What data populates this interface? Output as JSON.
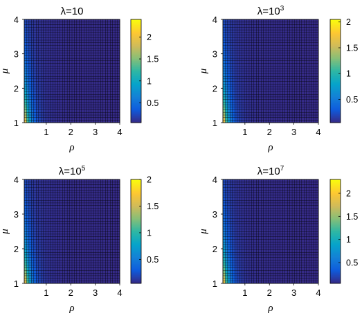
{
  "colormap": {
    "name": "parula",
    "stops": [
      "#352a87",
      "#0f5cdd",
      "#1481d6",
      "#06a4ca",
      "#2eb7a4",
      "#87bf77",
      "#d1bb59",
      "#fec832",
      "#f9fb0e"
    ]
  },
  "chart_data": [
    {
      "type": "heatmap",
      "title_prefix": "λ=10",
      "title_exp": "",
      "xlabel": "ρ",
      "ylabel": "μ",
      "xlim": [
        0.1,
        4
      ],
      "ylim": [
        1,
        4
      ],
      "xticks": [
        "1",
        "2",
        "3",
        "4"
      ],
      "yticks": [
        "1",
        "2",
        "3",
        "4"
      ],
      "grid": true,
      "cells_x": 40,
      "cells_y": 40,
      "clim": [
        0.05,
        2.4
      ],
      "cmax_at_origin": 2.4,
      "colorbar_ticks": [
        {
          "value": 0.5,
          "label": "0.5"
        },
        {
          "value": 1,
          "label": "1"
        },
        {
          "value": 1.5,
          "label": "1.5"
        },
        {
          "value": 2,
          "label": "2"
        }
      ]
    },
    {
      "type": "heatmap",
      "title_prefix": "λ=10",
      "title_exp": "3",
      "xlabel": "ρ",
      "ylabel": "μ",
      "xlim": [
        0.1,
        4
      ],
      "ylim": [
        1,
        4
      ],
      "xticks": [
        "1",
        "2",
        "3",
        "4"
      ],
      "yticks": [
        "1",
        "2",
        "3",
        "4"
      ],
      "grid": true,
      "cells_x": 40,
      "cells_y": 40,
      "clim": [
        0.05,
        2.05
      ],
      "cmax_at_origin": 2.05,
      "colorbar_ticks": [
        {
          "value": 0.5,
          "label": "0.5"
        },
        {
          "value": 1,
          "label": "1"
        },
        {
          "value": 1.5,
          "label": "1.5"
        },
        {
          "value": 2,
          "label": "2"
        }
      ]
    },
    {
      "type": "heatmap",
      "title_prefix": "λ=10",
      "title_exp": "5",
      "xlabel": "ρ",
      "ylabel": "μ",
      "xlim": [
        0.1,
        4
      ],
      "ylim": [
        1,
        4
      ],
      "xticks": [
        "1",
        "2",
        "3",
        "4"
      ],
      "yticks": [
        "1",
        "2",
        "3",
        "4"
      ],
      "grid": true,
      "cells_x": 40,
      "cells_y": 40,
      "clim": [
        0.05,
        2.0
      ],
      "cmax_at_origin": 2.0,
      "colorbar_ticks": [
        {
          "value": 0.5,
          "label": "0.5"
        },
        {
          "value": 1,
          "label": "1"
        },
        {
          "value": 1.5,
          "label": "1.5"
        },
        {
          "value": 2,
          "label": "2"
        }
      ]
    },
    {
      "type": "heatmap",
      "title_prefix": "λ=10",
      "title_exp": "7",
      "xlabel": "ρ",
      "ylabel": "μ",
      "xlim": [
        0.1,
        4
      ],
      "ylim": [
        1,
        4
      ],
      "xticks": [
        "1",
        "2",
        "3",
        "4"
      ],
      "yticks": [
        "1",
        "2",
        "3",
        "4"
      ],
      "grid": true,
      "cells_x": 40,
      "cells_y": 40,
      "clim": [
        0.05,
        2.3
      ],
      "cmax_at_origin": 2.3,
      "colorbar_ticks": [
        {
          "value": 0.5,
          "label": "0.5"
        },
        {
          "value": 1,
          "label": "1"
        },
        {
          "value": 1.5,
          "label": "1.5"
        },
        {
          "value": 2,
          "label": "2"
        }
      ]
    }
  ]
}
